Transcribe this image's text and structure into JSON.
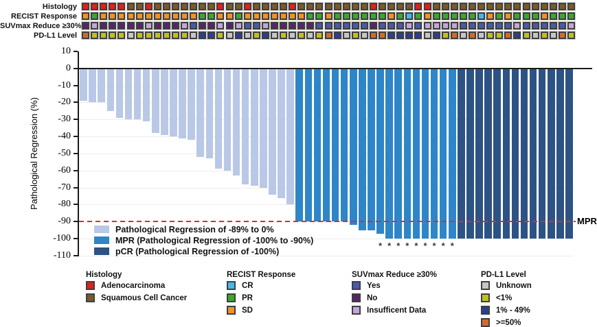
{
  "chart_data": {
    "type": "bar",
    "title": "",
    "ylabel": "Pathological Regression (%)",
    "ylim": [
      -110,
      10
    ],
    "yticks": [
      10,
      0,
      -10,
      -20,
      -30,
      -40,
      -50,
      -60,
      -70,
      -80,
      -90,
      -100,
      -110
    ],
    "grid": "horizontal-light",
    "n_patients": 55,
    "values": [
      -19,
      -20,
      -20,
      -25,
      -29,
      -30,
      -30,
      -31,
      -38,
      -39,
      -40,
      -41,
      -42,
      -52,
      -53,
      -59,
      -60,
      -63,
      -68,
      -69,
      -70,
      -74,
      -76,
      -80,
      -90,
      -90,
      -90,
      -90,
      -90,
      -90,
      -92,
      -95,
      -95,
      -97,
      -100,
      -100,
      -100,
      -100,
      -100,
      -100,
      -100,
      -100,
      -100,
      -100,
      -100,
      -100,
      -100,
      -100,
      -100,
      -100,
      -100,
      -100,
      -100,
      -100,
      -100
    ],
    "groups": [
      "reg",
      "reg",
      "reg",
      "reg",
      "reg",
      "reg",
      "reg",
      "reg",
      "reg",
      "reg",
      "reg",
      "reg",
      "reg",
      "reg",
      "reg",
      "reg",
      "reg",
      "reg",
      "reg",
      "reg",
      "reg",
      "reg",
      "reg",
      "reg",
      "mpr",
      "mpr",
      "mpr",
      "mpr",
      "mpr",
      "mpr",
      "mpr",
      "mpr",
      "mpr",
      "mpr",
      "mpr",
      "mpr",
      "mpr",
      "mpr",
      "mpr",
      "mpr",
      "mpr",
      "mpr",
      "pcr",
      "pcr",
      "pcr",
      "pcr",
      "pcr",
      "pcr",
      "pcr",
      "pcr",
      "pcr",
      "pcr",
      "pcr",
      "pcr",
      "pcr"
    ],
    "asterisk_bars": [
      34,
      35,
      36,
      37,
      38,
      39,
      40,
      41,
      42
    ],
    "mpr_line": {
      "value": -90,
      "label": "MPR",
      "color": "#e8262a"
    }
  },
  "bar_colors": {
    "reg": "#b9c8e6",
    "mpr": "#2e86c8",
    "pcr": "#2d5384"
  },
  "tracks": [
    {
      "label": "Histology",
      "palette": {
        "A": "#e2201c",
        "S": "#7b5a2a"
      },
      "codes": [
        "A",
        "A",
        "A",
        "A",
        "A",
        "S",
        "S",
        "A",
        "S",
        "S",
        "S",
        "S",
        "S",
        "S",
        "S",
        "A",
        "S",
        "S",
        "A",
        "S",
        "S",
        "S",
        "S",
        "A",
        "S",
        "S",
        "S",
        "S",
        "S",
        "S",
        "S",
        "S",
        "A",
        "S",
        "S",
        "S",
        "S",
        "A",
        "A",
        "S",
        "S",
        "S",
        "S",
        "S",
        "S",
        "S",
        "S",
        "S",
        "S",
        "S",
        "S",
        "S",
        "S",
        "S",
        "S"
      ]
    },
    {
      "label": "RECIST Response",
      "palette": {
        "SD": "#f29222",
        "PR": "#3aa72f",
        "CR": "#45b8e8"
      },
      "codes": [
        "SD",
        "PR",
        "SD",
        "SD",
        "SD",
        "SD",
        "SD",
        "SD",
        "SD",
        "SD",
        "SD",
        "SD",
        "SD",
        "PR",
        "PR",
        "SD",
        "SD",
        "PR",
        "SD",
        "SD",
        "SD",
        "SD",
        "SD",
        "SD",
        "SD",
        "PR",
        "PR",
        "SD",
        "PR",
        "PR",
        "PR",
        "PR",
        "PR",
        "PR",
        "SD",
        "PR",
        "CR",
        "PR",
        "SD",
        "PR",
        "PR",
        "PR",
        "PR",
        "PR",
        "CR",
        "SD",
        "PR",
        "SD",
        "PR",
        "PR",
        "PR",
        "SD",
        "PR",
        "PR",
        "PR"
      ]
    },
    {
      "label": "SUVmax Reduce ≥30%",
      "palette": {
        "Y": "#4a58ae",
        "N": "#57256b",
        "I": "#c4a6da"
      },
      "codes": [
        "N",
        "I",
        "N",
        "N",
        "N",
        "N",
        "N",
        "I",
        "N",
        "N",
        "N",
        "I",
        "Y",
        "N",
        "N",
        "I",
        "N",
        "I",
        "Y",
        "Y",
        "I",
        "N",
        "N",
        "N",
        "N",
        "N",
        "Y",
        "Y",
        "Y",
        "Y",
        "Y",
        "Y",
        "N",
        "Y",
        "Y",
        "Y",
        "I",
        "Y",
        "I",
        "I",
        "I",
        "I",
        "Y",
        "Y",
        "Y",
        "Y",
        "Y",
        "Y",
        "I",
        "Y",
        "Y",
        "Y",
        "Y",
        "Y",
        "I"
      ]
    },
    {
      "label": "PD-L1 Level",
      "palette": {
        "U": "#c6c6c6",
        "L": "#bfc01f",
        "M": "#2c3e96",
        "H": "#d5692a"
      },
      "codes": [
        "H",
        "L",
        "L",
        "L",
        "L",
        "U",
        "L",
        "L",
        "L",
        "L",
        "L",
        "L",
        "U",
        "M",
        "M",
        "L",
        "U",
        "M",
        "U",
        "L",
        "M",
        "U",
        "L",
        "U",
        "L",
        "U",
        "L",
        "H",
        "M",
        "U",
        "L",
        "U",
        "H",
        "H",
        "M",
        "M",
        "M",
        "M",
        "U",
        "M",
        "L",
        "H",
        "U",
        "H",
        "U",
        "L",
        "L",
        "H",
        "M",
        "L",
        "U",
        "L",
        "U",
        "H",
        "L"
      ]
    }
  ],
  "legend_inplot": {
    "items": [
      {
        "label": "Pathological Regression of -89% to 0%",
        "color": "#b9c8e6"
      },
      {
        "label": "MPR (Pathological Regression of -100% to -90%)",
        "color": "#2e86c8"
      },
      {
        "label": "pCR (Pathological Regression of -100%)",
        "color": "#2d5384"
      }
    ]
  },
  "legend_groups": [
    {
      "title": "Histology",
      "items": [
        {
          "label": "Adenocarcinoma",
          "color": "#e2201c"
        },
        {
          "label": "Squamous Cell Cancer",
          "color": "#7b5a2a"
        }
      ]
    },
    {
      "title": "RECIST Response",
      "items": [
        {
          "label": "CR",
          "color": "#45b8e8"
        },
        {
          "label": "PR",
          "color": "#3aa72f"
        },
        {
          "label": "SD",
          "color": "#f29222"
        }
      ]
    },
    {
      "title": "SUVmax Reduce ≥30%",
      "items": [
        {
          "label": "Yes",
          "color": "#4a58ae"
        },
        {
          "label": "No",
          "color": "#57256b"
        },
        {
          "label": "Insufficent Data",
          "color": "#c4a6da"
        }
      ]
    },
    {
      "title": "PD-L1 Level",
      "items": [
        {
          "label": "Unknown",
          "color": "#c6c6c6"
        },
        {
          "label": "<1%",
          "color": "#bfc01f"
        },
        {
          "label": "1% - 49%",
          "color": "#2c3e96"
        },
        {
          "label": ">=50%",
          "color": "#d5692a"
        }
      ]
    }
  ]
}
